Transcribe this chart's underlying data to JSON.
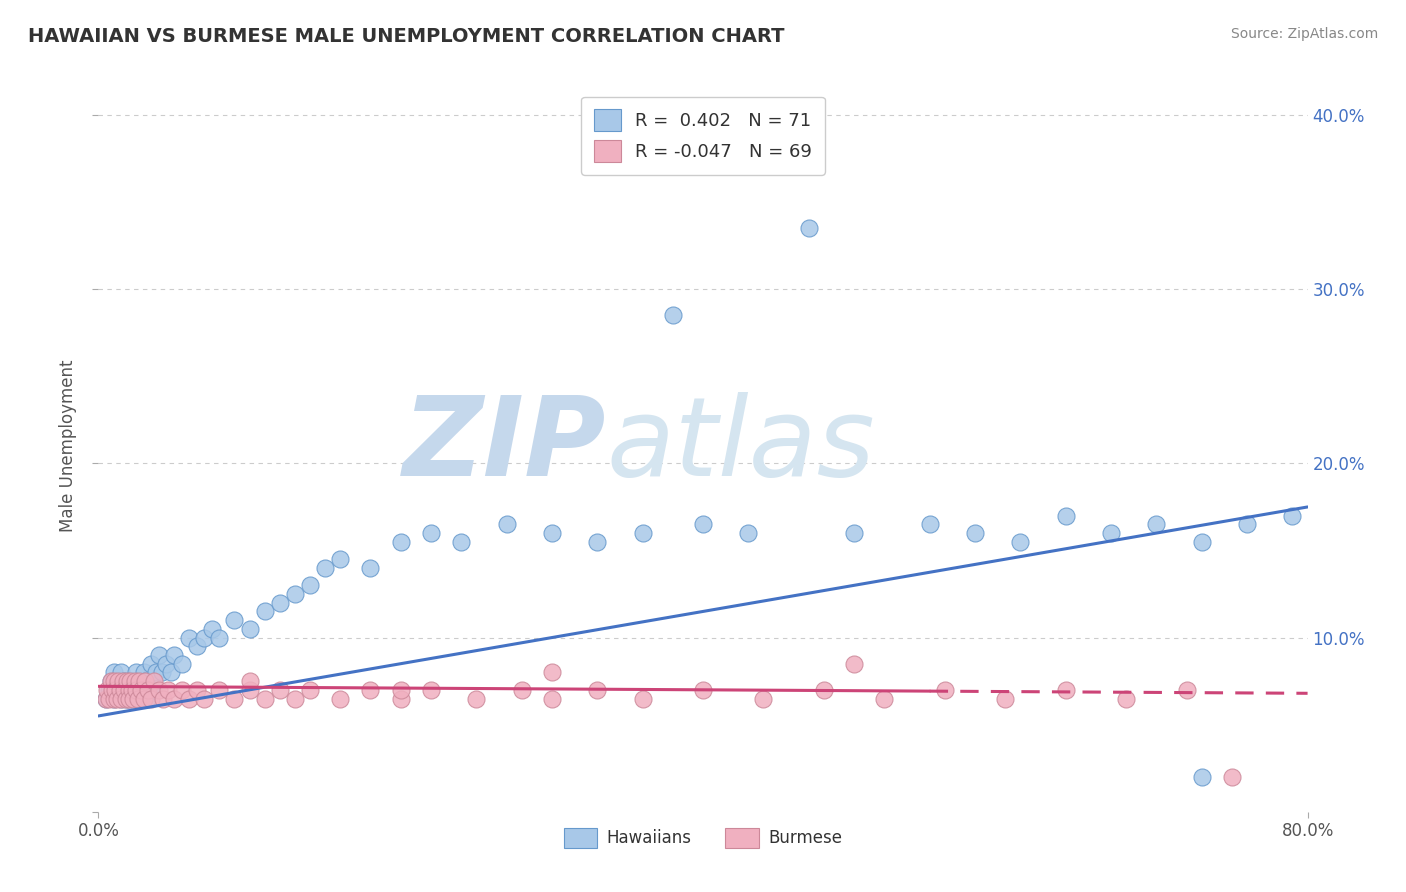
{
  "title": "HAWAIIAN VS BURMESE MALE UNEMPLOYMENT CORRELATION CHART",
  "source": "Source: ZipAtlas.com",
  "ylabel": "Male Unemployment",
  "xlabel": "",
  "xlim": [
    0.0,
    0.8
  ],
  "ylim": [
    0.0,
    0.42
  ],
  "xticks": [
    0.0,
    0.8
  ],
  "xticklabels": [
    "0.0%",
    "80.0%"
  ],
  "yticks_right": [
    0.1,
    0.2,
    0.3,
    0.4
  ],
  "yticklabels_right": [
    "10.0%",
    "20.0%",
    "30.0%",
    "40.0%"
  ],
  "hawaiians_R": 0.402,
  "hawaiians_N": 71,
  "burmese_R": -0.047,
  "burmese_N": 69,
  "hawaiians_color": "#A8C8E8",
  "hawaiians_edge": "#6699CC",
  "burmese_color": "#F0B0C0",
  "burmese_edge": "#CC8899",
  "trend_hawaiians_color": "#4472C4",
  "trend_burmese_color": "#CC4477",
  "background_color": "#FFFFFF",
  "grid_color": "#CCCCCC",
  "title_color": "#333333",
  "hawaiians_x": [
    0.005,
    0.007,
    0.008,
    0.01,
    0.01,
    0.012,
    0.013,
    0.015,
    0.015,
    0.016,
    0.017,
    0.018,
    0.019,
    0.02,
    0.02,
    0.021,
    0.022,
    0.023,
    0.025,
    0.025,
    0.026,
    0.027,
    0.028,
    0.03,
    0.031,
    0.032,
    0.035,
    0.036,
    0.038,
    0.04,
    0.042,
    0.045,
    0.048,
    0.05,
    0.055,
    0.06,
    0.065,
    0.07,
    0.075,
    0.08,
    0.09,
    0.1,
    0.11,
    0.12,
    0.13,
    0.14,
    0.15,
    0.16,
    0.18,
    0.2,
    0.22,
    0.24,
    0.27,
    0.3,
    0.33,
    0.36,
    0.38,
    0.4,
    0.43,
    0.47,
    0.5,
    0.55,
    0.58,
    0.61,
    0.64,
    0.67,
    0.7,
    0.73,
    0.76,
    0.73,
    0.79
  ],
  "hawaiians_y": [
    0.065,
    0.07,
    0.075,
    0.065,
    0.08,
    0.07,
    0.075,
    0.065,
    0.08,
    0.07,
    0.075,
    0.065,
    0.07,
    0.075,
    0.065,
    0.07,
    0.075,
    0.065,
    0.08,
    0.07,
    0.075,
    0.065,
    0.07,
    0.08,
    0.075,
    0.065,
    0.085,
    0.07,
    0.08,
    0.09,
    0.08,
    0.085,
    0.08,
    0.09,
    0.085,
    0.1,
    0.095,
    0.1,
    0.105,
    0.1,
    0.11,
    0.105,
    0.115,
    0.12,
    0.125,
    0.13,
    0.14,
    0.145,
    0.14,
    0.155,
    0.16,
    0.155,
    0.165,
    0.16,
    0.155,
    0.16,
    0.285,
    0.165,
    0.16,
    0.335,
    0.16,
    0.165,
    0.16,
    0.155,
    0.17,
    0.16,
    0.165,
    0.155,
    0.165,
    0.02,
    0.17
  ],
  "burmese_x": [
    0.005,
    0.006,
    0.007,
    0.008,
    0.009,
    0.01,
    0.01,
    0.011,
    0.012,
    0.013,
    0.014,
    0.015,
    0.016,
    0.017,
    0.018,
    0.019,
    0.02,
    0.02,
    0.021,
    0.022,
    0.023,
    0.024,
    0.025,
    0.026,
    0.027,
    0.028,
    0.03,
    0.031,
    0.033,
    0.035,
    0.037,
    0.04,
    0.043,
    0.046,
    0.05,
    0.055,
    0.06,
    0.065,
    0.07,
    0.08,
    0.09,
    0.1,
    0.11,
    0.12,
    0.13,
    0.14,
    0.16,
    0.18,
    0.2,
    0.22,
    0.25,
    0.28,
    0.3,
    0.33,
    0.36,
    0.4,
    0.44,
    0.48,
    0.52,
    0.56,
    0.6,
    0.64,
    0.68,
    0.72,
    0.5,
    0.3,
    0.2,
    0.75,
    0.1
  ],
  "burmese_y": [
    0.065,
    0.07,
    0.065,
    0.075,
    0.07,
    0.065,
    0.075,
    0.07,
    0.065,
    0.075,
    0.07,
    0.065,
    0.075,
    0.07,
    0.065,
    0.075,
    0.07,
    0.065,
    0.075,
    0.07,
    0.065,
    0.075,
    0.07,
    0.065,
    0.075,
    0.07,
    0.065,
    0.075,
    0.07,
    0.065,
    0.075,
    0.07,
    0.065,
    0.07,
    0.065,
    0.07,
    0.065,
    0.07,
    0.065,
    0.07,
    0.065,
    0.07,
    0.065,
    0.07,
    0.065,
    0.07,
    0.065,
    0.07,
    0.065,
    0.07,
    0.065,
    0.07,
    0.065,
    0.07,
    0.065,
    0.07,
    0.065,
    0.07,
    0.065,
    0.07,
    0.065,
    0.07,
    0.065,
    0.07,
    0.085,
    0.08,
    0.07,
    0.02,
    0.075
  ],
  "trend_h_x0": 0.0,
  "trend_h_y0": 0.055,
  "trend_h_x1": 0.8,
  "trend_h_y1": 0.175,
  "trend_b_x0": 0.0,
  "trend_b_y0": 0.072,
  "trend_b_x1": 0.8,
  "trend_b_y1": 0.068
}
